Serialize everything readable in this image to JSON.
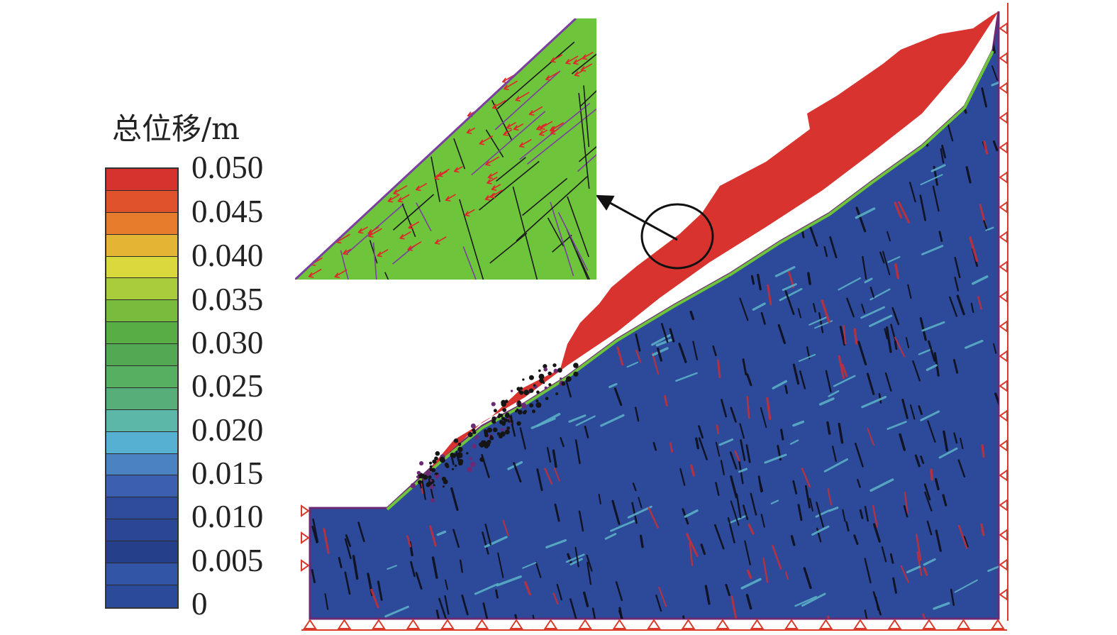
{
  "legend": {
    "title": "总位移/m",
    "labels": [
      "0.050",
      "0.045",
      "0.040",
      "0.035",
      "0.030",
      "0.025",
      "0.020",
      "0.015",
      "0.010",
      "0.005",
      "0"
    ],
    "colors": [
      "#d6322e",
      "#e0522c",
      "#e77d2c",
      "#e4b435",
      "#d9d93e",
      "#a9cc3c",
      "#79bb3d",
      "#59ad45",
      "#53a853",
      "#57b061",
      "#58ae78",
      "#5db7a8",
      "#55b0d2",
      "#4b82c2",
      "#3d5fb0",
      "#2f4b9c",
      "#2b4695",
      "#263f8a",
      "#3256a5",
      "#2c4a9a"
    ]
  },
  "colors": {
    "slope_body": "#2d4a9a",
    "moving_mass": "#d8332f",
    "detail_fill": "#6ec43a",
    "displacement_arrow": "#e0262a",
    "boundary_support": "#d93a2a",
    "outline": "#6b2a73"
  }
}
